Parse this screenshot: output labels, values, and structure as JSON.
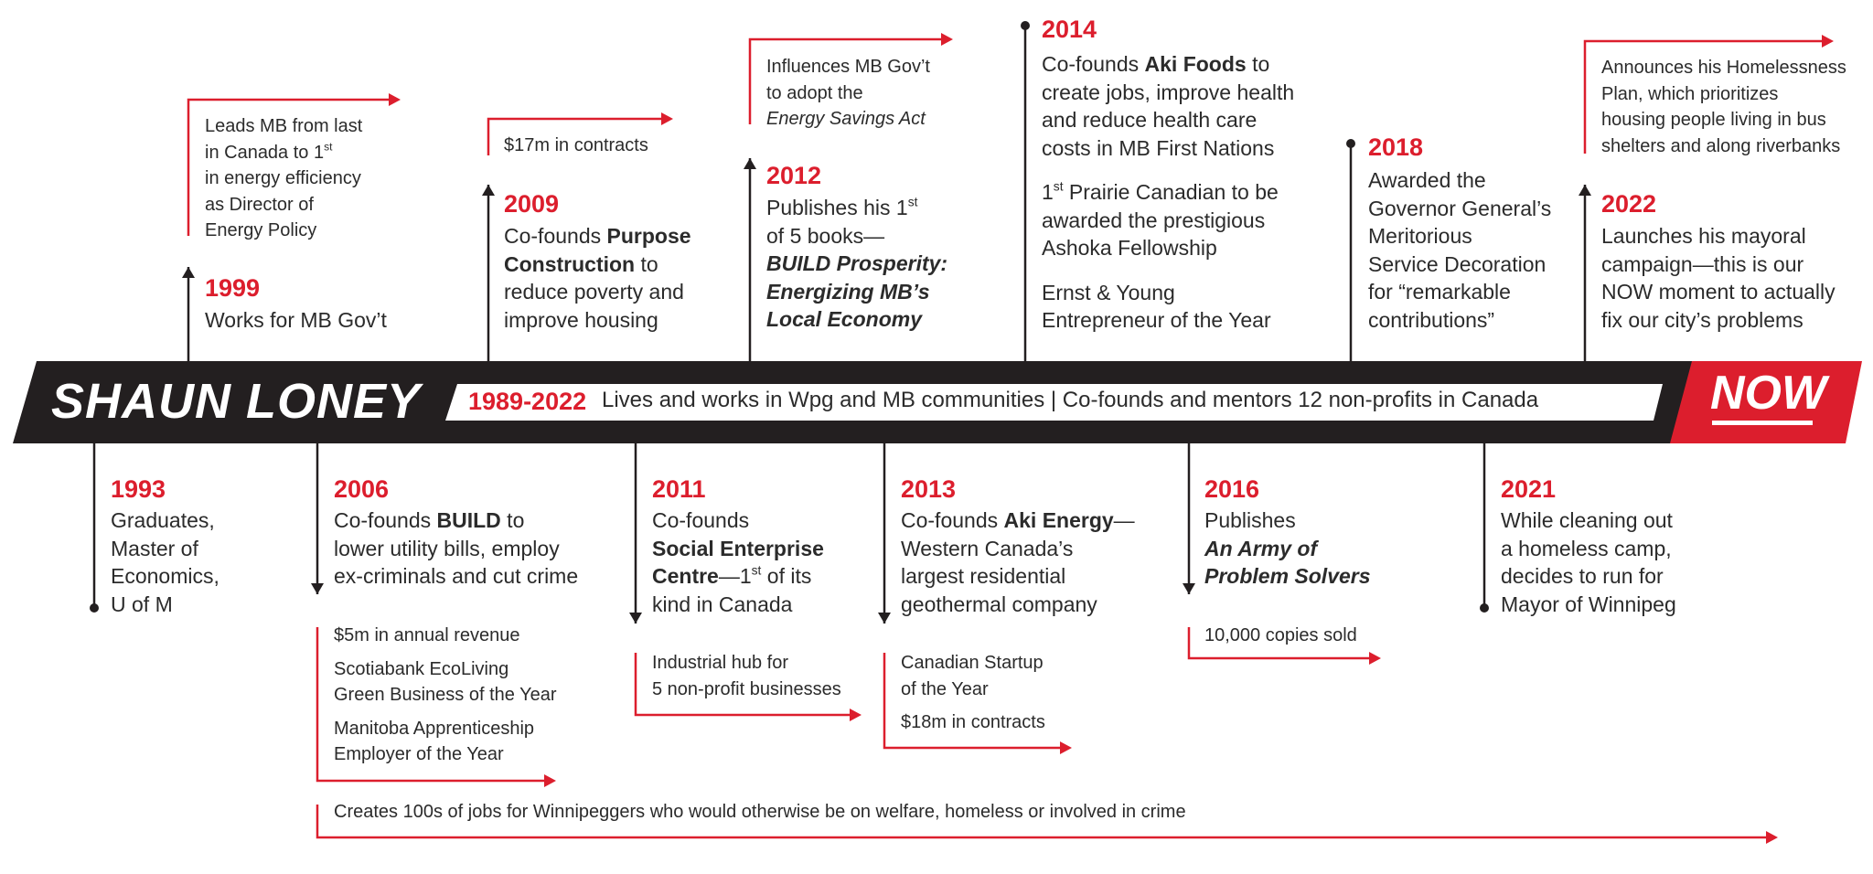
{
  "header": {
    "name": "SHAUN LONEY",
    "span_years": "1989-2022",
    "span_text": "Lives and works in Wpg and MB communities | Co-founds and mentors 12 non-profits in Canada",
    "now": "NOW"
  },
  "colors": {
    "accent": "#dc1e2d",
    "band": "#231f20",
    "text": "#2b2b2b"
  },
  "events": {
    "e1993": {
      "year": "1993",
      "lines": [
        "Graduates,",
        "Master of",
        "Economics,",
        "U of M"
      ]
    },
    "e1999": {
      "year": "1999",
      "lines": [
        "Works for MB Gov’t"
      ],
      "note": [
        "Leads MB from last",
        "in Canada to 1",
        "st",
        "in energy efficiency",
        "as Director of",
        "Energy Policy"
      ]
    },
    "e2006": {
      "year": "2006",
      "pre": "Co-founds ",
      "bold": "BUILD",
      "post": " to",
      "lines": [
        "lower utility bills, employ",
        "ex-criminals and cut crime"
      ],
      "notes": [
        "$5m in annual revenue",
        "Scotiabank EcoLiving",
        "Green Business of the Year",
        "Manitoba Apprenticeship",
        "Employer of the Year"
      ],
      "jobs": "Creates 100s of jobs for Winnipeggers who would otherwise be on welfare, homeless or involved in crime"
    },
    "e2009": {
      "year": "2009",
      "pre": "Co-founds ",
      "bold1": "Purpose",
      "bold2": "Construction",
      "post": " to",
      "lines": [
        "reduce poverty and",
        "improve housing"
      ],
      "note": "$17m in contracts"
    },
    "e2011": {
      "year": "2011",
      "line1": "Co-founds",
      "bold1": "Social Enterprise",
      "bold2": "Centre",
      "post2": "—1",
      "sup": "st",
      "post3": " of its",
      "line4": "kind in Canada",
      "notes": [
        "Industrial hub for",
        "5 non-profit businesses"
      ]
    },
    "e2012": {
      "year": "2012",
      "line1": "Publishes his 1",
      "sup": "st",
      "line2": "of 5 books—",
      "book": [
        "BUILD Prosperity:",
        "Energizing MB’s",
        "Local Economy"
      ],
      "notes": [
        "Influences MB Gov’t",
        "to adopt the",
        "Energy Savings Act"
      ]
    },
    "e2013": {
      "year": "2013",
      "pre": "Co-founds ",
      "bold": "Aki Energy",
      "post": "—",
      "lines": [
        "Western Canada’s",
        "largest residential",
        "geothermal company"
      ],
      "notes": [
        "Canadian Startup",
        "of the Year",
        "$18m in contracts"
      ]
    },
    "e2014": {
      "year": "2014",
      "pre": "Co-founds ",
      "bold": "Aki Foods",
      "post": " to",
      "lines": [
        "create jobs, improve health",
        "and reduce health care",
        "costs in MB First Nations"
      ],
      "award1a": "1",
      "award1sup": "st",
      "award1b": " Prairie Canadian to be",
      "award1": [
        "awarded the prestigious",
        "Ashoka Fellowship"
      ],
      "award2": [
        "Ernst & Young",
        "Entrepreneur of the Year"
      ]
    },
    "e2016": {
      "year": "2016",
      "line1": "Publishes",
      "book": [
        "An Army of",
        "Problem Solvers"
      ],
      "note": "10,000 copies sold"
    },
    "e2018": {
      "year": "2018",
      "lines": [
        "Awarded the",
        "Governor General’s",
        "Meritorious",
        "Service Decoration",
        "for “remarkable",
        "contributions”"
      ]
    },
    "e2021": {
      "year": "2021",
      "lines": [
        "While cleaning out",
        "a homeless camp,",
        "decides to run for",
        "Mayor of Winnipeg"
      ]
    },
    "e2022": {
      "year": "2022",
      "lines": [
        "Launches his mayoral",
        "campaign—this is our",
        "NOW moment to actually",
        "fix our city’s problems"
      ],
      "notes": [
        "Announces his Homelessness",
        "Plan, which prioritizes",
        "housing people living in bus",
        "shelters and along riverbanks"
      ]
    }
  }
}
